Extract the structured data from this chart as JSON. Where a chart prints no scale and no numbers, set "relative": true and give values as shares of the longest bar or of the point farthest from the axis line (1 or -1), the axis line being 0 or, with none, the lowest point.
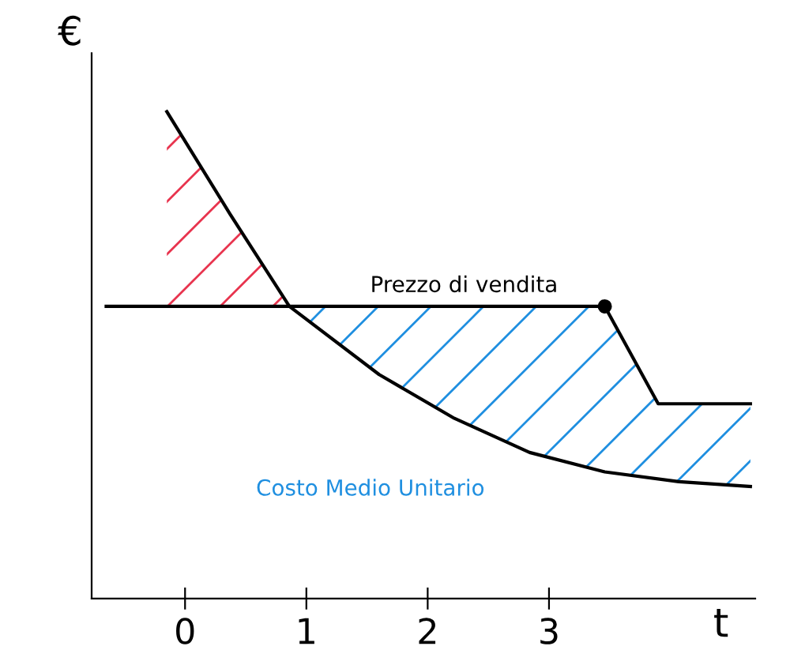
{
  "chart_data": {
    "type": "line",
    "relative": true,
    "xlabel": "t",
    "ylabel": "€",
    "xlim": [
      -0.77,
      4.7
    ],
    "xticks": [
      0,
      1,
      2,
      3
    ],
    "series": [
      {
        "color": "#000000",
        "x": [
          -0.15,
          0.37,
          0.86,
          1.6,
          2.22,
          2.84,
          3.46,
          4.07,
          4.66
        ],
        "values": [
          1.0,
          0.79,
          0.6,
          0.46,
          0.37,
          0.3,
          0.26,
          0.24,
          0.23
        ]
      },
      {
        "color": "#000000",
        "x": [
          -0.65,
          3.46,
          3.9,
          4.66
        ],
        "values": [
          0.6,
          0.6,
          0.4,
          0.4
        ]
      },
      {
        "type": "scatter",
        "marker": "circle",
        "color": "#000000",
        "x": [
          3.46
        ],
        "values": [
          0.6
        ]
      }
    ],
    "annotations": [
      {
        "text": "Prezzo di vendita",
        "x": 2.3,
        "y": 0.6
      },
      "Costo Medio Unitario"
    ],
    "grid": false
  }
}
